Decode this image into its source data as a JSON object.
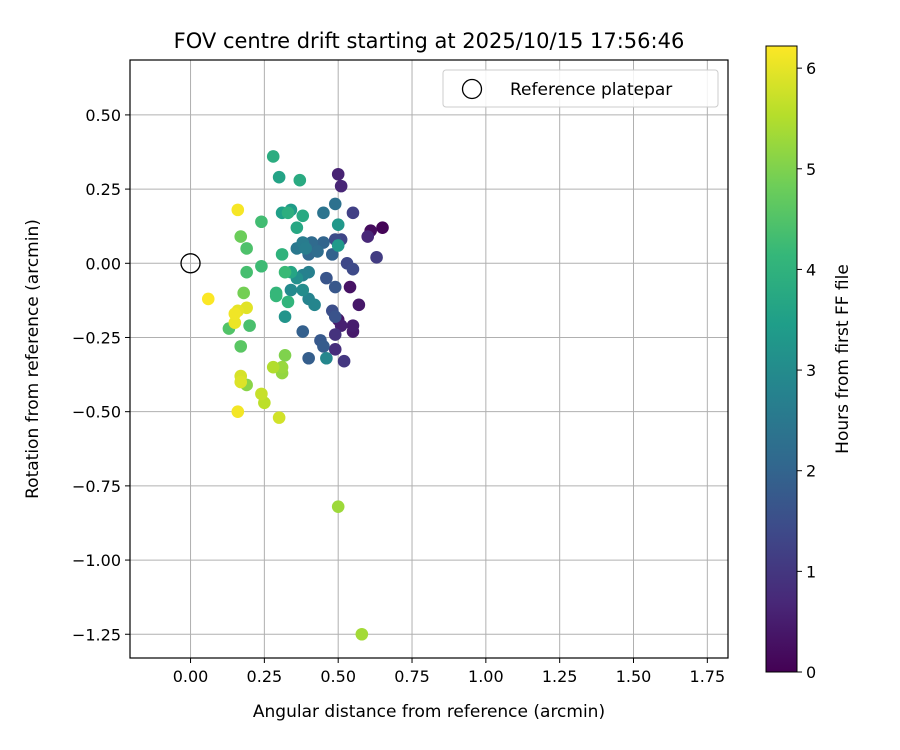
{
  "chart_data": {
    "type": "scatter",
    "title": "FOV centre drift starting at 2025/10/15 17:56:46",
    "xlabel": "Angular distance from reference (arcmin)",
    "ylabel": "Rotation from reference (arcmin)",
    "xlim": [
      -0.205,
      1.82
    ],
    "ylim": [
      -1.33,
      0.685
    ],
    "xticks": [
      0.0,
      0.25,
      0.5,
      0.75,
      1.0,
      1.25,
      1.5,
      1.75
    ],
    "xtick_labels": [
      "0.00",
      "0.25",
      "0.50",
      "0.75",
      "1.00",
      "1.25",
      "1.50",
      "1.75"
    ],
    "yticks": [
      0.5,
      0.25,
      0.0,
      -0.25,
      -0.5,
      -0.75,
      -1.0,
      -1.25
    ],
    "ytick_labels": [
      "0.50",
      "0.25",
      "0.00",
      "−0.25",
      "−0.50",
      "−0.75",
      "−1.00",
      "−1.25"
    ],
    "grid": true,
    "legend": {
      "placement": "upper-right",
      "entries": [
        {
          "label": "Reference platepar",
          "marker": "open-circle"
        }
      ]
    },
    "reference_point": {
      "x": 0.0,
      "y": 0.0,
      "label": "Reference platepar"
    },
    "colorbar": {
      "label": "Hours from first FF file",
      "min": 0,
      "max": 6.22,
      "ticks": [
        0,
        1,
        2,
        3,
        4,
        5,
        6
      ],
      "tick_labels": [
        "0",
        "1",
        "2",
        "3",
        "4",
        "5",
        "6"
      ],
      "colormap": "viridis",
      "stops": [
        "#440154",
        "#482878",
        "#3e4989",
        "#31688e",
        "#26828e",
        "#1f9e89",
        "#35b779",
        "#6ece58",
        "#b5de2b",
        "#fde725"
      ]
    },
    "points": [
      {
        "x": 0.65,
        "y": 0.12,
        "c": 0.05
      },
      {
        "x": 0.61,
        "y": 0.11,
        "c": 0.2
      },
      {
        "x": 0.54,
        "y": -0.08,
        "c": 0.3
      },
      {
        "x": 0.57,
        "y": -0.14,
        "c": 0.4
      },
      {
        "x": 0.5,
        "y": -0.19,
        "c": 0.35
      },
      {
        "x": 0.55,
        "y": -0.23,
        "c": 0.45
      },
      {
        "x": 0.55,
        "y": -0.21,
        "c": 0.5
      },
      {
        "x": 0.51,
        "y": -0.21,
        "c": 0.55
      },
      {
        "x": 0.5,
        "y": 0.3,
        "c": 0.6
      },
      {
        "x": 0.51,
        "y": 0.26,
        "c": 0.65
      },
      {
        "x": 0.6,
        "y": 0.09,
        "c": 0.7
      },
      {
        "x": 0.49,
        "y": -0.29,
        "c": 0.8
      },
      {
        "x": 0.49,
        "y": -0.24,
        "c": 0.9
      },
      {
        "x": 0.52,
        "y": -0.33,
        "c": 1.0
      },
      {
        "x": 0.63,
        "y": 0.02,
        "c": 1.1
      },
      {
        "x": 0.55,
        "y": 0.17,
        "c": 1.2
      },
      {
        "x": 0.51,
        "y": 0.08,
        "c": 1.3
      },
      {
        "x": 0.53,
        "y": 0.0,
        "c": 1.35
      },
      {
        "x": 0.55,
        "y": -0.02,
        "c": 1.4
      },
      {
        "x": 0.49,
        "y": 0.08,
        "c": 1.45
      },
      {
        "x": 0.48,
        "y": -0.16,
        "c": 1.5
      },
      {
        "x": 0.49,
        "y": -0.18,
        "c": 1.6
      },
      {
        "x": 0.46,
        "y": -0.05,
        "c": 1.65
      },
      {
        "x": 0.49,
        "y": -0.08,
        "c": 1.7
      },
      {
        "x": 0.44,
        "y": -0.26,
        "c": 1.75
      },
      {
        "x": 0.45,
        "y": -0.28,
        "c": 1.8
      },
      {
        "x": 0.4,
        "y": -0.32,
        "c": 1.85
      },
      {
        "x": 0.38,
        "y": -0.23,
        "c": 1.9
      },
      {
        "x": 0.48,
        "y": 0.03,
        "c": 1.95
      },
      {
        "x": 0.45,
        "y": 0.07,
        "c": 2.0
      },
      {
        "x": 0.42,
        "y": 0.05,
        "c": 2.05
      },
      {
        "x": 0.4,
        "y": 0.03,
        "c": 2.1
      },
      {
        "x": 0.41,
        "y": 0.07,
        "c": 2.15
      },
      {
        "x": 0.43,
        "y": 0.04,
        "c": 2.2
      },
      {
        "x": 0.49,
        "y": 0.2,
        "c": 2.3
      },
      {
        "x": 0.45,
        "y": 0.17,
        "c": 2.4
      },
      {
        "x": 0.36,
        "y": 0.05,
        "c": 2.5
      },
      {
        "x": 0.38,
        "y": 0.07,
        "c": 2.6
      },
      {
        "x": 0.39,
        "y": 0.05,
        "c": 2.65
      },
      {
        "x": 0.4,
        "y": -0.03,
        "c": 2.7
      },
      {
        "x": 0.38,
        "y": -0.04,
        "c": 2.75
      },
      {
        "x": 0.4,
        "y": -0.12,
        "c": 2.8
      },
      {
        "x": 0.42,
        "y": -0.14,
        "c": 2.85
      },
      {
        "x": 0.46,
        "y": -0.32,
        "c": 2.9
      },
      {
        "x": 0.34,
        "y": -0.09,
        "c": 2.95
      },
      {
        "x": 0.38,
        "y": -0.09,
        "c": 3.0
      },
      {
        "x": 0.36,
        "y": -0.05,
        "c": 3.1
      },
      {
        "x": 0.32,
        "y": -0.18,
        "c": 3.2
      },
      {
        "x": 0.5,
        "y": 0.13,
        "c": 3.3
      },
      {
        "x": 0.5,
        "y": 0.06,
        "c": 3.35
      },
      {
        "x": 0.34,
        "y": 0.18,
        "c": 3.4
      },
      {
        "x": 0.31,
        "y": 0.17,
        "c": 3.5
      },
      {
        "x": 0.3,
        "y": 0.29,
        "c": 3.6
      },
      {
        "x": 0.34,
        "y": -0.03,
        "c": 3.65
      },
      {
        "x": 0.36,
        "y": 0.12,
        "c": 3.7
      },
      {
        "x": 0.38,
        "y": 0.16,
        "c": 3.75
      },
      {
        "x": 0.37,
        "y": 0.28,
        "c": 3.8
      },
      {
        "x": 0.28,
        "y": 0.36,
        "c": 3.85
      },
      {
        "x": 0.33,
        "y": 0.17,
        "c": 3.9
      },
      {
        "x": 0.31,
        "y": 0.03,
        "c": 4.0
      },
      {
        "x": 0.33,
        "y": -0.13,
        "c": 4.05
      },
      {
        "x": 0.29,
        "y": -0.1,
        "c": 4.1
      },
      {
        "x": 0.29,
        "y": -0.11,
        "c": 4.15
      },
      {
        "x": 0.32,
        "y": -0.03,
        "c": 4.2
      },
      {
        "x": 0.24,
        "y": -0.01,
        "c": 4.25
      },
      {
        "x": 0.24,
        "y": 0.14,
        "c": 4.3
      },
      {
        "x": 0.19,
        "y": -0.03,
        "c": 4.35
      },
      {
        "x": 0.2,
        "y": -0.21,
        "c": 4.4
      },
      {
        "x": 0.19,
        "y": 0.05,
        "c": 4.45
      },
      {
        "x": 0.13,
        "y": -0.22,
        "c": 4.5
      },
      {
        "x": 0.17,
        "y": -0.28,
        "c": 4.6
      },
      {
        "x": 0.17,
        "y": 0.09,
        "c": 4.8
      },
      {
        "x": 0.18,
        "y": -0.1,
        "c": 4.9
      },
      {
        "x": 0.32,
        "y": -0.31,
        "c": 5.0
      },
      {
        "x": 0.19,
        "y": -0.41,
        "c": 5.1
      },
      {
        "x": 0.31,
        "y": -0.37,
        "c": 5.2
      },
      {
        "x": 0.31,
        "y": -0.35,
        "c": 5.25
      },
      {
        "x": 0.5,
        "y": -0.82,
        "c": 5.3
      },
      {
        "x": 0.58,
        "y": -1.25,
        "c": 5.35
      },
      {
        "x": 0.28,
        "y": -0.35,
        "c": 5.5
      },
      {
        "x": 0.25,
        "y": -0.47,
        "c": 5.6
      },
      {
        "x": 0.24,
        "y": -0.44,
        "c": 5.7
      },
      {
        "x": 0.3,
        "y": -0.52,
        "c": 5.8
      },
      {
        "x": 0.17,
        "y": -0.38,
        "c": 5.85
      },
      {
        "x": 0.17,
        "y": -0.4,
        "c": 5.9
      },
      {
        "x": 0.19,
        "y": -0.15,
        "c": 5.95
      },
      {
        "x": 0.16,
        "y": -0.16,
        "c": 6.0
      },
      {
        "x": 0.15,
        "y": -0.2,
        "c": 6.05
      },
      {
        "x": 0.15,
        "y": -0.17,
        "c": 6.1
      },
      {
        "x": 0.16,
        "y": -0.5,
        "c": 6.12
      },
      {
        "x": 0.16,
        "y": 0.18,
        "c": 6.15
      },
      {
        "x": 0.06,
        "y": -0.12,
        "c": 6.2
      }
    ]
  }
}
